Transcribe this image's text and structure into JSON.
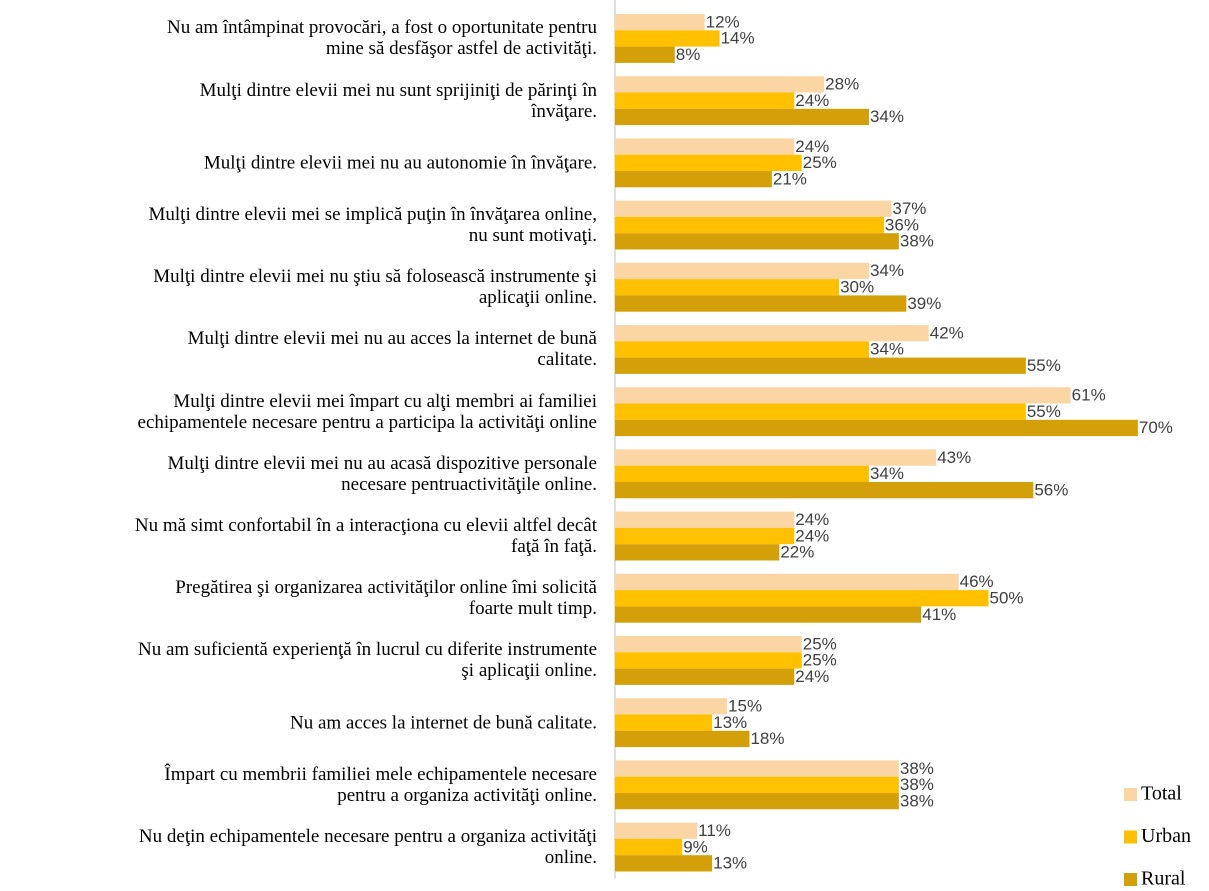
{
  "chart_data": {
    "type": "bar",
    "orientation": "horizontal",
    "categories": [
      "Nu am întâmpinat provocări, a fost o oportunitate pentru\nmine să desfăşor astfel de activităţi.",
      "Mulţi dintre elevii mei nu sunt sprijiniţi de părinţi în\nînvăţare.",
      "Mulţi dintre elevii mei nu au autonomie în învăţare.",
      "Mulţi dintre elevii mei se implică puţin în învăţarea online,\nnu sunt motivaţi.",
      "Mulţi dintre elevii mei nu ştiu să folosească instrumente şi\naplicaţii online.",
      "Mulţi dintre elevii mei nu au acces la internet de bună\ncalitate.",
      "Mulţi dintre elevii mei împart cu alţi membri ai familiei\nechipamentele necesare pentru a participa la activităţi online",
      "Mulţi dintre elevii mei nu au acasă dispozitive personale\nnecesare pentruactivităţile online.",
      "Nu mă simt confortabil în a interacţiona cu elevii altfel decât\nfaţă în faţă.",
      "Pregătirea şi organizarea activităţilor online îmi solicită\nfoarte mult timp.",
      "Nu am suficientă experienţă în lucrul cu diferite instrumente\nşi aplicaţii online.",
      "Nu am acces la internet de bună calitate.",
      "Împart cu membrii familiei  mele echipamentele necesare\npentru a organiza activităţi online.",
      "Nu deţin echipamentele necesare pentru a organiza activităţi\nonline."
    ],
    "series": [
      {
        "name": "Total",
        "color": "#fbd5a3",
        "values": [
          12,
          28,
          24,
          37,
          34,
          42,
          61,
          43,
          24,
          46,
          25,
          15,
          38,
          11
        ],
        "value_labels": [
          "12%",
          "28%",
          "24%",
          "37%",
          "34%",
          "42%",
          "61%",
          "43%",
          "24%",
          "46%",
          "25%",
          "15%",
          "38%",
          "11%"
        ]
      },
      {
        "name": "Urban",
        "color": "#ffc000",
        "values": [
          14,
          24,
          25,
          36,
          30,
          34,
          55,
          34,
          24,
          50,
          25,
          13,
          38,
          9
        ],
        "value_labels": [
          "14%",
          "24%",
          "25%",
          "36%",
          "30%",
          "34%",
          "55%",
          "34%",
          "24%",
          "50%",
          "25%",
          "13%",
          "38%",
          "9%"
        ]
      },
      {
        "name": "Rural",
        "color": "#d4a00a",
        "values": [
          8,
          34,
          21,
          38,
          39,
          55,
          70,
          56,
          22,
          41,
          24,
          18,
          38,
          13
        ],
        "value_labels": [
          "8%",
          "34%",
          "21%",
          "38%",
          "39%",
          "55%",
          "70%",
          "56%",
          "22%",
          "41%",
          "24%",
          "18%",
          "38%",
          "13%"
        ]
      }
    ],
    "legend": "bottom-right"
  }
}
